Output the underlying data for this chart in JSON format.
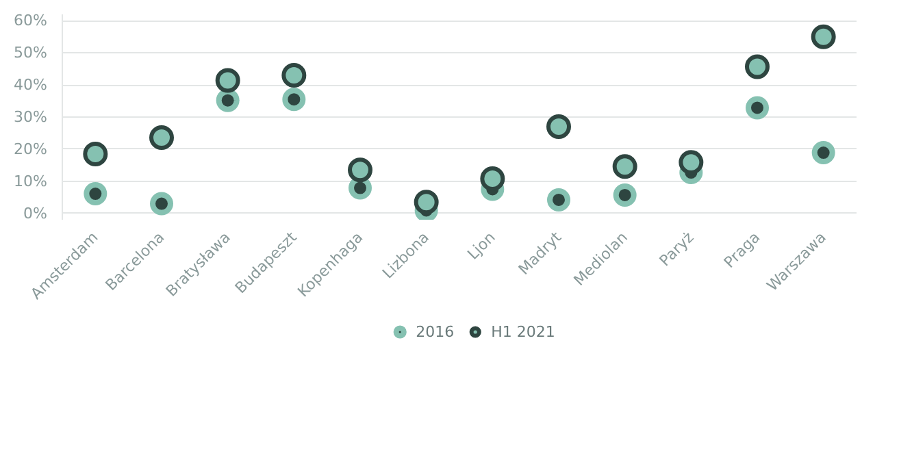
{
  "chart_data": {
    "type": "scatter",
    "categories": [
      "Amsterdam",
      "Barcelona",
      "Bratysława",
      "Budapeszt",
      "Kopenhaga",
      "Lizbona",
      "Ljon",
      "Madryt",
      "Mediolan",
      "Paryż",
      "Praga",
      "Warszawa"
    ],
    "series": [
      {
        "name": "2016",
        "color": "#85c1b1",
        "values": [
          6.1,
          3.0,
          35.2,
          35.5,
          7.9,
          0.9,
          7.5,
          4.2,
          5.7,
          12.7,
          32.9,
          18.9
        ]
      },
      {
        "name": "H1 2021",
        "color": "#2e4540",
        "values": [
          18.5,
          23.6,
          41.4,
          43.0,
          13.5,
          3.5,
          10.8,
          27.0,
          14.6,
          15.9,
          45.7,
          55.0
        ]
      }
    ],
    "ylim": [
      -2,
      62
    ],
    "yticks": [
      {
        "value": 0,
        "label": "0%"
      },
      {
        "value": 10,
        "label": "10%"
      },
      {
        "value": 20,
        "label": "20%"
      },
      {
        "value": 30,
        "label": "30%"
      },
      {
        "value": 40,
        "label": "40%"
      },
      {
        "value": 50,
        "label": "50%"
      },
      {
        "value": 60,
        "label": "60%"
      }
    ],
    "grid": "y",
    "legend": "bottom",
    "marker": "circle"
  }
}
